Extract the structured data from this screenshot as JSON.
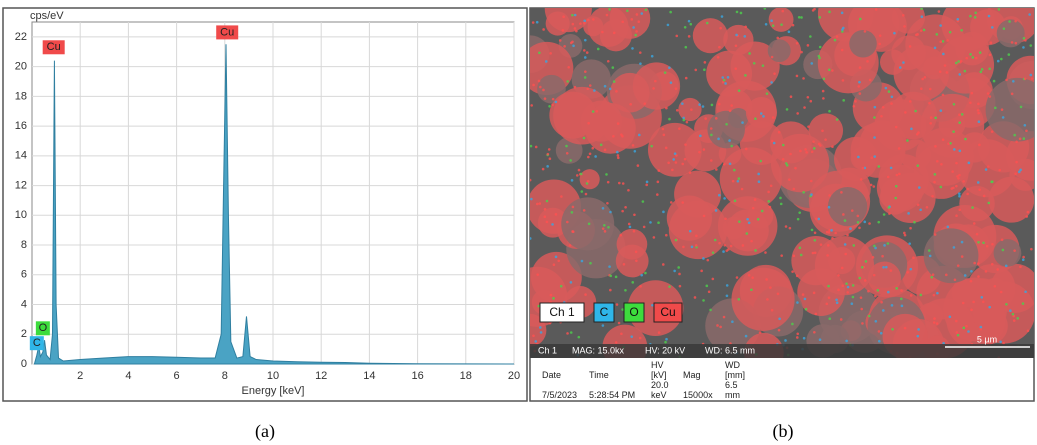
{
  "chart_data": {
    "type": "area",
    "y_label": "cps/eV",
    "x_label": "Energy [keV]",
    "x": [
      0.1,
      0.2,
      0.28,
      0.35,
      0.45,
      0.52,
      0.6,
      0.75,
      0.85,
      0.93,
      1.0,
      1.1,
      1.3,
      2,
      3,
      4,
      5,
      6,
      7,
      7.6,
      7.85,
      7.95,
      8.05,
      8.15,
      8.25,
      8.5,
      8.75,
      8.9,
      9.05,
      9.3,
      10,
      11,
      12,
      13,
      14,
      16,
      18,
      20
    ],
    "values": [
      0,
      0.6,
      1.2,
      0.5,
      0.8,
      1.6,
      0.6,
      0.3,
      2,
      20.4,
      4,
      0.4,
      0.2,
      0.3,
      0.4,
      0.5,
      0.5,
      0.45,
      0.4,
      0.4,
      2,
      12,
      21.5,
      10,
      1.5,
      0.4,
      0.5,
      3.2,
      0.5,
      0.3,
      0.2,
      0.15,
      0.12,
      0.1,
      0.05,
      0.02,
      0.01,
      0
    ],
    "color": "#4aa3c4",
    "xlim": [
      0,
      20
    ],
    "ylim": [
      0,
      23
    ],
    "xticks": [
      2,
      4,
      6,
      8,
      10,
      12,
      14,
      16,
      18,
      20
    ],
    "yticks": [
      0,
      2,
      4,
      6,
      8,
      10,
      12,
      14,
      16,
      18,
      20,
      22
    ],
    "grid": true,
    "annotations": [
      {
        "text": "Cu",
        "x": 0.9,
        "y": 21.3,
        "color": "#f04a4a"
      },
      {
        "text": "Cu",
        "x": 8.1,
        "y": 22.3,
        "color": "#f04a4a"
      },
      {
        "text": "O",
        "x": 0.45,
        "y": 2.4,
        "color": "#3ddc3d"
      },
      {
        "text": "C",
        "x": 0.2,
        "y": 1.4,
        "color": "#2fb6e8"
      }
    ]
  },
  "image_panel": {
    "legend": [
      {
        "text": "Ch 1",
        "color": "#ffffff"
      },
      {
        "text": "C",
        "color": "#2fb6e8"
      },
      {
        "text": "O",
        "color": "#3ddc3d"
      },
      {
        "text": "Cu",
        "color": "#f04a4a"
      }
    ],
    "info": [
      "Ch 1",
      "MAG: 15.0kx",
      "HV: 20 kV",
      "WD: 6.5 mm"
    ],
    "scale_bar": "5 µm",
    "table": {
      "header": [
        "Date",
        "Time",
        "HV [kV]",
        "Mag",
        "WD [mm]"
      ],
      "row": [
        "7/5/2023",
        "5:28:54 PM",
        "20.0 keV",
        "15000x",
        "6.5 mm"
      ]
    }
  },
  "captions": [
    "(a)",
    "(b)"
  ]
}
